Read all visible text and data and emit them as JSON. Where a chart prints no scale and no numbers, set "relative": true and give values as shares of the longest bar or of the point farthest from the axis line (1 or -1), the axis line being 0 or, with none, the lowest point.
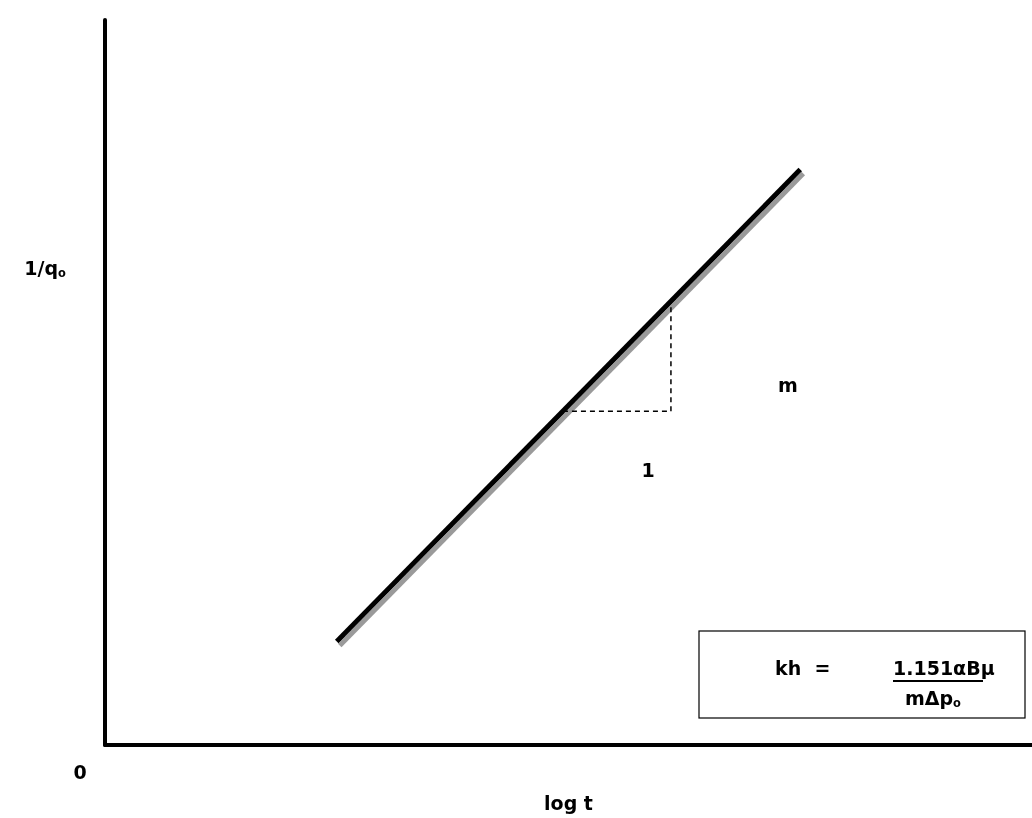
{
  "chart_data": {
    "type": "line",
    "relative": true,
    "xlabel": "log t",
    "ylabel": "1/q$_{o}$",
    "categories": [
      null,
      null
    ],
    "series": [
      {
        "color": "#000000",
        "values": [
          0.18,
          1
        ]
      }
    ],
    "marker": "none",
    "annotations": [
      "0",
      "m",
      "1",
      "kh  =",
      "1.151αBμ",
      "mΔp$_{o}$"
    ]
  }
}
